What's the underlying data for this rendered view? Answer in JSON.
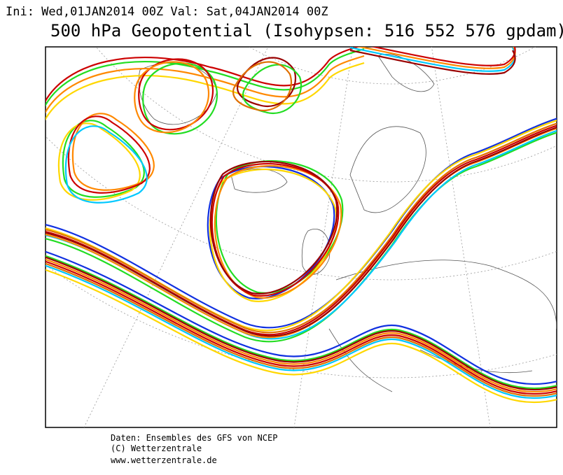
{
  "header": {
    "run_info": "Ini: Wed,01JAN2014 00Z Val: Sat,04JAN2014 00Z",
    "title": "500 hPa Geopotential (Isohypsen: 516 552 576 gpdam)"
  },
  "footer": {
    "lines": [
      "Daten: Ensembles des GFS von NCEP",
      "(C) Wetterzentrale",
      "www.wetterzentrale.de"
    ]
  }
}
